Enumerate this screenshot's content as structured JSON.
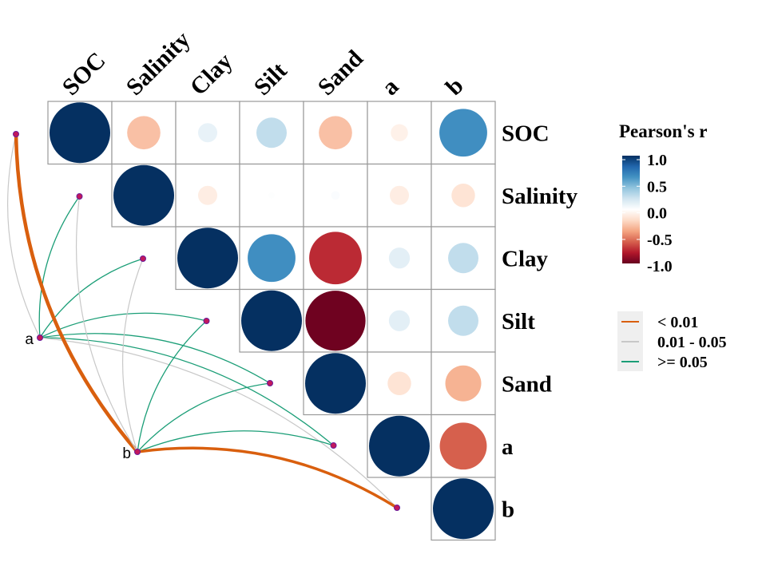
{
  "chart_data": {
    "type": "heatmap",
    "subtype": "correlation-circles-upper-triangle-with-mantel-links",
    "variables": [
      "SOC",
      "Salinity",
      "Clay",
      "Silt",
      "Sand",
      "a",
      "b"
    ],
    "matrix": [
      [
        1.0,
        -0.3,
        0.1,
        0.25,
        -0.3,
        -0.08,
        0.62
      ],
      [
        null,
        1.0,
        -0.1,
        0.01,
        0.02,
        -0.1,
        -0.15
      ],
      [
        null,
        null,
        1.0,
        0.62,
        -0.75,
        0.12,
        0.25
      ],
      [
        null,
        null,
        null,
        1.0,
        -0.98,
        0.12,
        0.25
      ],
      [
        null,
        null,
        null,
        null,
        1.0,
        -0.15,
        -0.35
      ],
      [
        null,
        null,
        null,
        null,
        null,
        1.0,
        -0.6
      ],
      [
        null,
        null,
        null,
        null,
        null,
        null,
        1.0
      ]
    ],
    "color_scale": {
      "title": "Pearson's r",
      "ticks": [
        "1.0",
        "0.5",
        "0.0",
        "-0.5",
        "-1.0"
      ],
      "range": [
        -1,
        1
      ],
      "colors": [
        "#67001F",
        "#B2182B",
        "#D6604D",
        "#F4A582",
        "#FDDBC7",
        "#FFFFFF",
        "#D1E5F0",
        "#92C5DE",
        "#4393C3",
        "#2166AC",
        "#053061"
      ]
    },
    "links": {
      "sources": [
        "a",
        "b"
      ],
      "edges": [
        {
          "from": "a",
          "to": "SOC",
          "p_class": "0.01 - 0.05"
        },
        {
          "from": "a",
          "to": "Salinity",
          "p_class": ">= 0.05"
        },
        {
          "from": "a",
          "to": "Clay",
          "p_class": ">= 0.05"
        },
        {
          "from": "a",
          "to": "Silt",
          "p_class": ">= 0.05"
        },
        {
          "from": "a",
          "to": "Sand",
          "p_class": ">= 0.05"
        },
        {
          "from": "a",
          "to": "a",
          "p_class": ">= 0.05"
        },
        {
          "from": "a",
          "to": "b",
          "p_class": "0.01 - 0.05"
        },
        {
          "from": "b",
          "to": "SOC",
          "p_class": "< 0.01"
        },
        {
          "from": "b",
          "to": "Salinity",
          "p_class": "0.01 - 0.05"
        },
        {
          "from": "b",
          "to": "Clay",
          "p_class": "0.01 - 0.05"
        },
        {
          "from": "b",
          "to": "Silt",
          "p_class": ">= 0.05"
        },
        {
          "from": "b",
          "to": "Sand",
          "p_class": ">= 0.05"
        },
        {
          "from": "b",
          "to": "a",
          "p_class": ">= 0.05"
        },
        {
          "from": "b",
          "to": "b",
          "p_class": "< 0.01"
        }
      ],
      "legend": [
        {
          "label": "< 0.01",
          "color": "#D95F0E"
        },
        {
          "label": "0.01 - 0.05",
          "color": "#C8C8C8"
        },
        {
          "label": ">= 0.05",
          "color": "#1B9E77"
        }
      ]
    },
    "grid_color": "#999999",
    "node_color": "#C2185B"
  }
}
